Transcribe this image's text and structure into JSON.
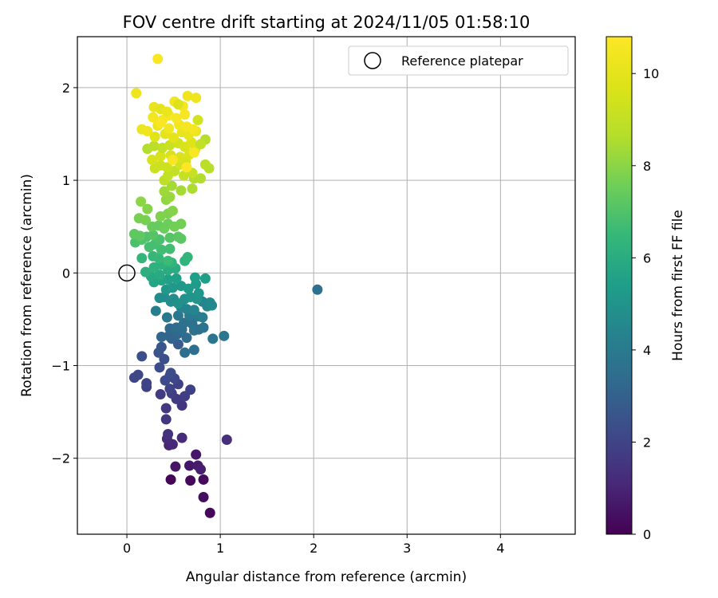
{
  "chart_data": {
    "type": "scatter",
    "title": "FOV centre drift starting at 2024/11/05 01:58:10",
    "xlabel": "Angular distance from reference (arcmin)",
    "ylabel": "Rotation from reference (arcmin)",
    "xlim": [
      -0.53,
      4.8
    ],
    "ylim": [
      -2.82,
      2.55
    ],
    "xticks": [
      0,
      1,
      2,
      3,
      4
    ],
    "yticks": [
      -2,
      -1,
      0,
      1,
      2
    ],
    "xtick_labels": [
      "0",
      "1",
      "2",
      "3",
      "4"
    ],
    "ytick_labels": [
      "−2",
      "−1",
      "0",
      "1",
      "2"
    ],
    "grid": true,
    "legend": {
      "position": "top-right",
      "label": "Reference platepar"
    },
    "reference_point": {
      "x": 0,
      "y": 0
    },
    "colorbar": {
      "label": "Hours from first FF file",
      "range": [
        0,
        10.8
      ],
      "ticks": [
        0,
        2,
        4,
        6,
        8,
        10
      ],
      "tick_labels": [
        "0",
        "2",
        "4",
        "6",
        "8",
        "10"
      ],
      "colormap": "viridis"
    },
    "points": [
      {
        "x": 0.47,
        "y": -2.23,
        "h": 0.1
      },
      {
        "x": 0.68,
        "y": -2.24,
        "h": 0.2
      },
      {
        "x": 0.82,
        "y": -2.23,
        "h": 0.3
      },
      {
        "x": 0.89,
        "y": -2.59,
        "h": 0.2
      },
      {
        "x": 0.82,
        "y": -2.42,
        "h": 0.4
      },
      {
        "x": 0.52,
        "y": -2.09,
        "h": 0.5
      },
      {
        "x": 0.67,
        "y": -2.08,
        "h": 0.6
      },
      {
        "x": 0.76,
        "y": -2.08,
        "h": 0.7
      },
      {
        "x": 0.79,
        "y": -2.12,
        "h": 0.8
      },
      {
        "x": 0.74,
        "y": -1.96,
        "h": 0.6
      },
      {
        "x": 0.45,
        "y": -1.86,
        "h": 1.0
      },
      {
        "x": 0.49,
        "y": -1.85,
        "h": 1.1
      },
      {
        "x": 0.43,
        "y": -1.79,
        "h": 1.2
      },
      {
        "x": 0.59,
        "y": -1.78,
        "h": 1.2
      },
      {
        "x": 1.07,
        "y": -1.8,
        "h": 1.3
      },
      {
        "x": 0.44,
        "y": -1.74,
        "h": 1.4
      },
      {
        "x": 0.42,
        "y": -1.58,
        "h": 1.5
      },
      {
        "x": 0.42,
        "y": -1.46,
        "h": 1.6
      },
      {
        "x": 0.59,
        "y": -1.43,
        "h": 1.5
      },
      {
        "x": 0.53,
        "y": -1.36,
        "h": 1.7
      },
      {
        "x": 0.62,
        "y": -1.33,
        "h": 1.8
      },
      {
        "x": 0.36,
        "y": -1.31,
        "h": 1.7
      },
      {
        "x": 0.48,
        "y": -1.3,
        "h": 1.8
      },
      {
        "x": 0.68,
        "y": -1.26,
        "h": 1.9
      },
      {
        "x": 0.21,
        "y": -1.23,
        "h": 1.9
      },
      {
        "x": 0.21,
        "y": -1.19,
        "h": 2.0
      },
      {
        "x": 0.46,
        "y": -1.25,
        "h": 2.0
      },
      {
        "x": 0.55,
        "y": -1.2,
        "h": 1.9
      },
      {
        "x": 0.51,
        "y": -1.14,
        "h": 2.1
      },
      {
        "x": 0.08,
        "y": -1.13,
        "h": 2.1
      },
      {
        "x": 0.12,
        "y": -1.1,
        "h": 2.1
      },
      {
        "x": 0.46,
        "y": -1.11,
        "h": 2.2
      },
      {
        "x": 0.41,
        "y": -1.16,
        "h": 2.2
      },
      {
        "x": 0.47,
        "y": -1.08,
        "h": 2.3
      },
      {
        "x": 0.35,
        "y": -1.02,
        "h": 2.3
      },
      {
        "x": 0.4,
        "y": -0.93,
        "h": 2.4
      },
      {
        "x": 0.16,
        "y": -0.9,
        "h": 2.4
      },
      {
        "x": 0.34,
        "y": -0.86,
        "h": 2.5
      },
      {
        "x": 0.37,
        "y": -0.8,
        "h": 2.6
      },
      {
        "x": 0.55,
        "y": -0.77,
        "h": 2.8
      },
      {
        "x": 0.48,
        "y": -0.71,
        "h": 3.0
      },
      {
        "x": 0.45,
        "y": -0.68,
        "h": 3.1
      },
      {
        "x": 0.37,
        "y": -0.69,
        "h": 3.2
      },
      {
        "x": 0.54,
        "y": -0.66,
        "h": 3.3
      },
      {
        "x": 0.64,
        "y": -0.7,
        "h": 3.4
      },
      {
        "x": 0.62,
        "y": -0.86,
        "h": 3.5
      },
      {
        "x": 0.72,
        "y": -0.83,
        "h": 3.5
      },
      {
        "x": 0.46,
        "y": -0.6,
        "h": 3.3
      },
      {
        "x": 0.53,
        "y": -0.59,
        "h": 3.4
      },
      {
        "x": 0.59,
        "y": -0.61,
        "h": 3.5
      },
      {
        "x": 0.61,
        "y": -0.54,
        "h": 3.6
      },
      {
        "x": 0.7,
        "y": -0.55,
        "h": 3.6
      },
      {
        "x": 0.72,
        "y": -0.62,
        "h": 3.7
      },
      {
        "x": 0.77,
        "y": -0.61,
        "h": 3.6
      },
      {
        "x": 0.82,
        "y": -0.59,
        "h": 3.7
      },
      {
        "x": 0.92,
        "y": -0.71,
        "h": 3.8
      },
      {
        "x": 1.04,
        "y": -0.68,
        "h": 3.8
      },
      {
        "x": 0.43,
        "y": -0.48,
        "h": 3.9
      },
      {
        "x": 0.55,
        "y": -0.46,
        "h": 3.9
      },
      {
        "x": 0.67,
        "y": -0.46,
        "h": 4.0
      },
      {
        "x": 0.76,
        "y": -0.47,
        "h": 4.0
      },
      {
        "x": 0.81,
        "y": -0.48,
        "h": 4.1
      },
      {
        "x": 0.31,
        "y": -0.41,
        "h": 4.2
      },
      {
        "x": 0.58,
        "y": -0.37,
        "h": 4.3
      },
      {
        "x": 0.64,
        "y": -0.39,
        "h": 4.3
      },
      {
        "x": 0.72,
        "y": -0.4,
        "h": 4.4
      },
      {
        "x": 0.81,
        "y": -0.31,
        "h": 4.4
      },
      {
        "x": 0.86,
        "y": -0.36,
        "h": 4.5
      },
      {
        "x": 0.91,
        "y": -0.35,
        "h": 4.6
      },
      {
        "x": 0.89,
        "y": -0.32,
        "h": 4.6
      },
      {
        "x": 0.35,
        "y": -0.27,
        "h": 4.7
      },
      {
        "x": 0.4,
        "y": -0.26,
        "h": 4.7
      },
      {
        "x": 0.47,
        "y": -0.31,
        "h": 4.8
      },
      {
        "x": 0.5,
        "y": -0.28,
        "h": 4.8
      },
      {
        "x": 0.55,
        "y": -0.33,
        "h": 4.9
      },
      {
        "x": 0.62,
        "y": -0.28,
        "h": 4.9
      },
      {
        "x": 0.68,
        "y": -0.26,
        "h": 5.0
      },
      {
        "x": 0.75,
        "y": -0.28,
        "h": 5.0
      },
      {
        "x": 0.77,
        "y": -0.22,
        "h": 5.1
      },
      {
        "x": 2.04,
        "y": -0.18,
        "h": 3.6
      },
      {
        "x": 0.42,
        "y": -0.18,
        "h": 5.1
      },
      {
        "x": 0.49,
        "y": -0.16,
        "h": 5.2
      },
      {
        "x": 0.58,
        "y": -0.14,
        "h": 5.2
      },
      {
        "x": 0.66,
        "y": -0.17,
        "h": 5.3
      },
      {
        "x": 0.74,
        "y": -0.12,
        "h": 5.3
      },
      {
        "x": 0.84,
        "y": -0.06,
        "h": 5.4
      },
      {
        "x": 0.73,
        "y": -0.05,
        "h": 5.4
      },
      {
        "x": 0.53,
        "y": -0.06,
        "h": 5.5
      },
      {
        "x": 0.44,
        "y": -0.07,
        "h": 5.5
      },
      {
        "x": 0.37,
        "y": -0.08,
        "h": 5.6
      },
      {
        "x": 0.29,
        "y": -0.1,
        "h": 5.7
      },
      {
        "x": 0.26,
        "y": -0.04,
        "h": 5.8
      },
      {
        "x": 0.35,
        "y": -0.02,
        "h": 5.9
      },
      {
        "x": 0.44,
        "y": 0.03,
        "h": 6.0
      },
      {
        "x": 0.52,
        "y": 0.05,
        "h": 6.0
      },
      {
        "x": 0.2,
        "y": 0.01,
        "h": 6.1
      },
      {
        "x": 0.29,
        "y": 0.06,
        "h": 6.2
      },
      {
        "x": 0.37,
        "y": 0.09,
        "h": 6.2
      },
      {
        "x": 0.48,
        "y": 0.11,
        "h": 6.3
      },
      {
        "x": 0.62,
        "y": 0.13,
        "h": 6.3
      },
      {
        "x": 0.65,
        "y": 0.17,
        "h": 6.4
      },
      {
        "x": 0.16,
        "y": 0.16,
        "h": 6.4
      },
      {
        "x": 0.28,
        "y": 0.18,
        "h": 6.5
      },
      {
        "x": 0.34,
        "y": 0.16,
        "h": 6.5
      },
      {
        "x": 0.44,
        "y": 0.13,
        "h": 6.6
      },
      {
        "x": 0.37,
        "y": 0.25,
        "h": 6.7
      },
      {
        "x": 0.46,
        "y": 0.26,
        "h": 6.7
      },
      {
        "x": 0.24,
        "y": 0.28,
        "h": 6.8
      },
      {
        "x": 0.3,
        "y": 0.31,
        "h": 6.8
      },
      {
        "x": 0.35,
        "y": 0.36,
        "h": 6.9
      },
      {
        "x": 0.09,
        "y": 0.33,
        "h": 6.9
      },
      {
        "x": 0.16,
        "y": 0.36,
        "h": 7.0
      },
      {
        "x": 0.21,
        "y": 0.39,
        "h": 7.0
      },
      {
        "x": 0.28,
        "y": 0.41,
        "h": 7.1
      },
      {
        "x": 0.46,
        "y": 0.38,
        "h": 7.1
      },
      {
        "x": 0.55,
        "y": 0.39,
        "h": 7.2
      },
      {
        "x": 0.58,
        "y": 0.37,
        "h": 7.2
      },
      {
        "x": 0.08,
        "y": 0.42,
        "h": 7.3
      },
      {
        "x": 0.14,
        "y": 0.4,
        "h": 7.3
      },
      {
        "x": 0.27,
        "y": 0.5,
        "h": 7.4
      },
      {
        "x": 0.34,
        "y": 0.51,
        "h": 7.4
      },
      {
        "x": 0.4,
        "y": 0.48,
        "h": 7.5
      },
      {
        "x": 0.44,
        "y": 0.53,
        "h": 7.5
      },
      {
        "x": 0.51,
        "y": 0.5,
        "h": 7.6
      },
      {
        "x": 0.58,
        "y": 0.53,
        "h": 7.6
      },
      {
        "x": 0.13,
        "y": 0.59,
        "h": 7.7
      },
      {
        "x": 0.2,
        "y": 0.57,
        "h": 7.7
      },
      {
        "x": 0.36,
        "y": 0.61,
        "h": 7.8
      },
      {
        "x": 0.44,
        "y": 0.64,
        "h": 7.8
      },
      {
        "x": 0.49,
        "y": 0.67,
        "h": 7.9
      },
      {
        "x": 0.22,
        "y": 0.69,
        "h": 7.9
      },
      {
        "x": 0.15,
        "y": 0.77,
        "h": 8.0
      },
      {
        "x": 0.42,
        "y": 0.79,
        "h": 8.1
      },
      {
        "x": 0.46,
        "y": 0.82,
        "h": 8.2
      },
      {
        "x": 0.4,
        "y": 0.88,
        "h": 8.3
      },
      {
        "x": 0.48,
        "y": 0.94,
        "h": 8.4
      },
      {
        "x": 0.58,
        "y": 0.89,
        "h": 8.4
      },
      {
        "x": 0.7,
        "y": 0.91,
        "h": 8.5
      },
      {
        "x": 0.72,
        "y": 1.02,
        "h": 8.6
      },
      {
        "x": 0.79,
        "y": 1.02,
        "h": 8.6
      },
      {
        "x": 0.88,
        "y": 1.13,
        "h": 8.7
      },
      {
        "x": 0.84,
        "y": 1.17,
        "h": 8.8
      },
      {
        "x": 0.4,
        "y": 1.0,
        "h": 8.9
      },
      {
        "x": 0.44,
        "y": 1.05,
        "h": 9.0
      },
      {
        "x": 0.51,
        "y": 1.1,
        "h": 9.0
      },
      {
        "x": 0.61,
        "y": 1.05,
        "h": 9.1
      },
      {
        "x": 0.7,
        "y": 1.08,
        "h": 9.1
      },
      {
        "x": 0.3,
        "y": 1.13,
        "h": 9.2
      },
      {
        "x": 0.36,
        "y": 1.16,
        "h": 9.3
      },
      {
        "x": 0.43,
        "y": 1.14,
        "h": 9.3
      },
      {
        "x": 0.57,
        "y": 1.17,
        "h": 9.4
      },
      {
        "x": 0.63,
        "y": 1.21,
        "h": 9.4
      },
      {
        "x": 0.27,
        "y": 1.22,
        "h": 9.5
      },
      {
        "x": 0.36,
        "y": 1.26,
        "h": 9.5
      },
      {
        "x": 0.47,
        "y": 1.27,
        "h": 9.6
      },
      {
        "x": 0.57,
        "y": 1.25,
        "h": 9.6
      },
      {
        "x": 0.67,
        "y": 1.28,
        "h": 9.7
      },
      {
        "x": 0.73,
        "y": 1.33,
        "h": 9.7
      },
      {
        "x": 0.22,
        "y": 1.34,
        "h": 8.6
      },
      {
        "x": 0.29,
        "y": 1.37,
        "h": 8.8
      },
      {
        "x": 0.38,
        "y": 1.35,
        "h": 9.0
      },
      {
        "x": 0.46,
        "y": 1.38,
        "h": 9.2
      },
      {
        "x": 0.55,
        "y": 1.4,
        "h": 9.4
      },
      {
        "x": 0.62,
        "y": 1.36,
        "h": 9.6
      },
      {
        "x": 0.69,
        "y": 1.41,
        "h": 9.8
      },
      {
        "x": 0.84,
        "y": 1.44,
        "h": 8.7
      },
      {
        "x": 0.79,
        "y": 1.39,
        "h": 9.0
      },
      {
        "x": 0.3,
        "y": 1.47,
        "h": 9.9
      },
      {
        "x": 0.41,
        "y": 1.5,
        "h": 10.0
      },
      {
        "x": 0.5,
        "y": 1.46,
        "h": 10.0
      },
      {
        "x": 0.59,
        "y": 1.52,
        "h": 10.1
      },
      {
        "x": 0.66,
        "y": 1.49,
        "h": 10.1
      },
      {
        "x": 0.74,
        "y": 1.53,
        "h": 10.2
      },
      {
        "x": 0.16,
        "y": 1.55,
        "h": 10.2
      },
      {
        "x": 0.22,
        "y": 1.53,
        "h": 10.3
      },
      {
        "x": 0.33,
        "y": 1.59,
        "h": 10.3
      },
      {
        "x": 0.45,
        "y": 1.56,
        "h": 10.4
      },
      {
        "x": 0.56,
        "y": 1.6,
        "h": 10.4
      },
      {
        "x": 0.64,
        "y": 1.58,
        "h": 10.5
      },
      {
        "x": 0.71,
        "y": 1.55,
        "h": 10.5
      },
      {
        "x": 0.28,
        "y": 1.68,
        "h": 10.4
      },
      {
        "x": 0.38,
        "y": 1.65,
        "h": 10.5
      },
      {
        "x": 0.45,
        "y": 1.7,
        "h": 10.6
      },
      {
        "x": 0.53,
        "y": 1.67,
        "h": 10.6
      },
      {
        "x": 0.62,
        "y": 1.71,
        "h": 10.6
      },
      {
        "x": 0.76,
        "y": 1.65,
        "h": 9.4
      },
      {
        "x": 0.29,
        "y": 1.79,
        "h": 10.1
      },
      {
        "x": 0.36,
        "y": 1.77,
        "h": 10.0
      },
      {
        "x": 0.43,
        "y": 1.74,
        "h": 10.2
      },
      {
        "x": 0.6,
        "y": 1.8,
        "h": 10.5
      },
      {
        "x": 0.51,
        "y": 1.85,
        "h": 10.4
      },
      {
        "x": 0.65,
        "y": 1.91,
        "h": 10.3
      },
      {
        "x": 0.74,
        "y": 1.89,
        "h": 10.3
      },
      {
        "x": 0.1,
        "y": 1.94,
        "h": 10.3
      },
      {
        "x": 0.33,
        "y": 2.31,
        "h": 10.7
      },
      {
        "x": 0.55,
        "y": 1.82,
        "h": 9.7
      },
      {
        "x": 0.64,
        "y": 1.14,
        "h": 10.8
      },
      {
        "x": 0.49,
        "y": 1.22,
        "h": 10.6
      },
      {
        "x": 0.36,
        "y": 1.62,
        "h": 10.7
      },
      {
        "x": 0.72,
        "y": 1.3,
        "h": 10.6
      }
    ]
  }
}
